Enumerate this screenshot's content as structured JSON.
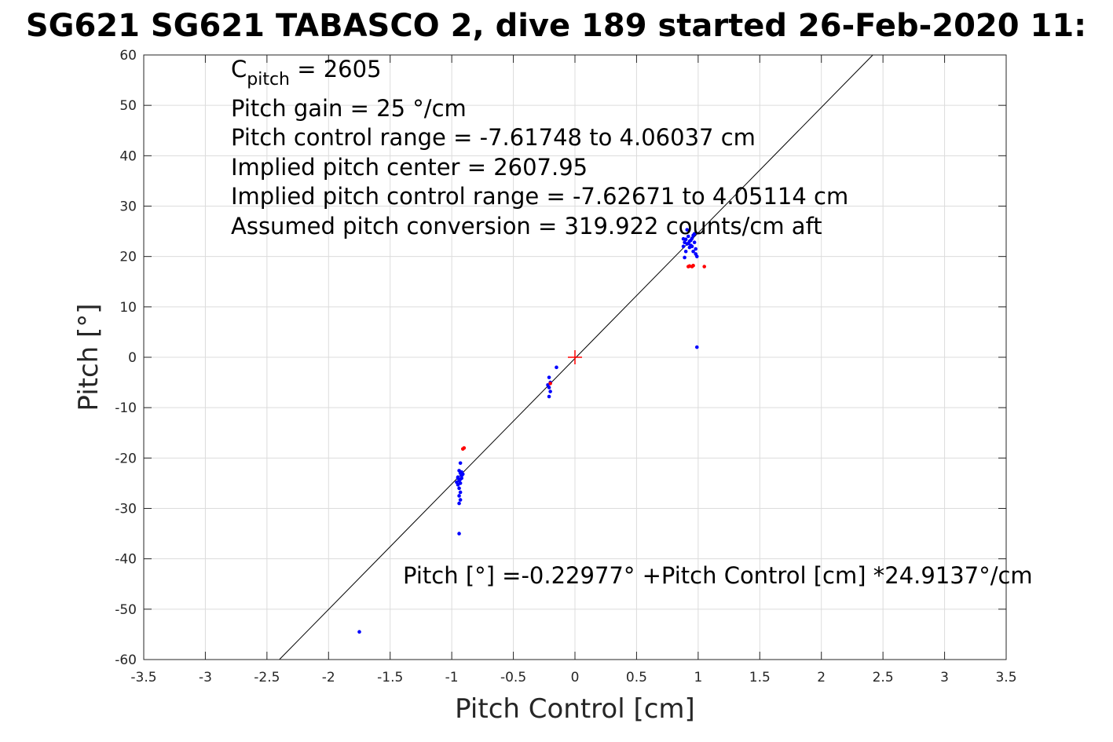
{
  "chart_data": {
    "type": "scatter",
    "title": "SG621 SG621 TABASCO 2, dive 189 started 26-Feb-2020 11:",
    "xlabel": "Pitch Control [cm]",
    "ylabel": "Pitch [°]",
    "xlim": [
      -3.5,
      3.5
    ],
    "ylim": [
      -60,
      60
    ],
    "xticks": [
      "-3.5",
      "-3",
      "-2.5",
      "-2",
      "-1.5",
      "-1",
      "-0.5",
      "0",
      "0.5",
      "1",
      "1.5",
      "2",
      "2.5",
      "3",
      "3.5"
    ],
    "yticks": [
      "60",
      "50",
      "40",
      "30",
      "20",
      "10",
      "0",
      "-10",
      "-20",
      "-30",
      "-40",
      "-50",
      "-60"
    ],
    "grid": true,
    "annotation": {
      "cpitch_base": "C",
      "cpitch_sub": "pitch",
      "cpitch_value": " = 2605",
      "lines": [
        "Pitch gain = 25 °/cm",
        "Pitch control range = -7.61748 to 4.06037 cm",
        "Implied pitch center = 2607.95",
        "Implied pitch control range = -7.62671 to 4.05114 cm",
        "Assumed pitch conversion = 319.922 counts/cm aft"
      ]
    },
    "fit_text": "Pitch [°] =-0.22977° +Pitch Control [cm] *24.9137°/cm",
    "fit_line": {
      "intercept": -0.22977,
      "slope": 24.9137,
      "color": "#000000"
    },
    "center_marker": {
      "x": 0,
      "y": 0,
      "color": "#ff0000"
    },
    "series": [
      {
        "color": "#0000ff",
        "points": [
          [
            -0.94,
            -22.5
          ],
          [
            -0.93,
            -23.0
          ],
          [
            -0.92,
            -23.5
          ],
          [
            -0.95,
            -24.0
          ],
          [
            -0.94,
            -24.5
          ],
          [
            -0.93,
            -25.0
          ],
          [
            -0.92,
            -24.0
          ],
          [
            -0.96,
            -24.8
          ],
          [
            -0.95,
            -25.3
          ],
          [
            -0.94,
            -26.0
          ],
          [
            -0.93,
            -26.8
          ],
          [
            -0.94,
            -27.5
          ],
          [
            -0.93,
            -28.3
          ],
          [
            -0.94,
            -29.0
          ],
          [
            -0.93,
            -21.0
          ],
          [
            -0.92,
            -22.8
          ],
          [
            -0.91,
            -23.2
          ],
          [
            -0.95,
            -23.8
          ],
          [
            -0.93,
            -24.2
          ],
          [
            -0.94,
            -35.0
          ],
          [
            -0.21,
            -4.0
          ],
          [
            -0.2,
            -5.0
          ],
          [
            -0.21,
            -6.0
          ],
          [
            -0.2,
            -6.8
          ],
          [
            -0.21,
            -7.8
          ],
          [
            -0.15,
            -2.0
          ],
          [
            -0.22,
            -5.5
          ],
          [
            0.88,
            22.0
          ],
          [
            0.89,
            22.8
          ],
          [
            0.9,
            23.4
          ],
          [
            0.91,
            22.5
          ],
          [
            0.92,
            24.0
          ],
          [
            0.93,
            23.0
          ],
          [
            0.94,
            22.2
          ],
          [
            0.95,
            23.6
          ],
          [
            0.96,
            24.2
          ],
          [
            0.97,
            22.8
          ],
          [
            0.98,
            21.5
          ],
          [
            0.98,
            20.5
          ],
          [
            0.99,
            20.0
          ],
          [
            0.97,
            24.5
          ],
          [
            0.96,
            21.0
          ],
          [
            0.95,
            22.0
          ],
          [
            0.94,
            23.2
          ],
          [
            0.93,
            21.8
          ],
          [
            0.92,
            22.6
          ],
          [
            0.9,
            21.0
          ],
          [
            0.89,
            19.8
          ],
          [
            0.88,
            23.5
          ],
          [
            0.91,
            25.3
          ],
          [
            0.99,
            2.0
          ],
          [
            -1.75,
            -54.5
          ]
        ]
      },
      {
        "color": "#ff0000",
        "points": [
          [
            -0.91,
            -18.2
          ],
          [
            -0.9,
            -18.0
          ],
          [
            0.92,
            18.0
          ],
          [
            0.93,
            18.1
          ],
          [
            0.95,
            18.0
          ],
          [
            0.96,
            18.2
          ],
          [
            1.05,
            18.0
          ],
          [
            -0.2,
            -5.2
          ]
        ]
      }
    ]
  }
}
